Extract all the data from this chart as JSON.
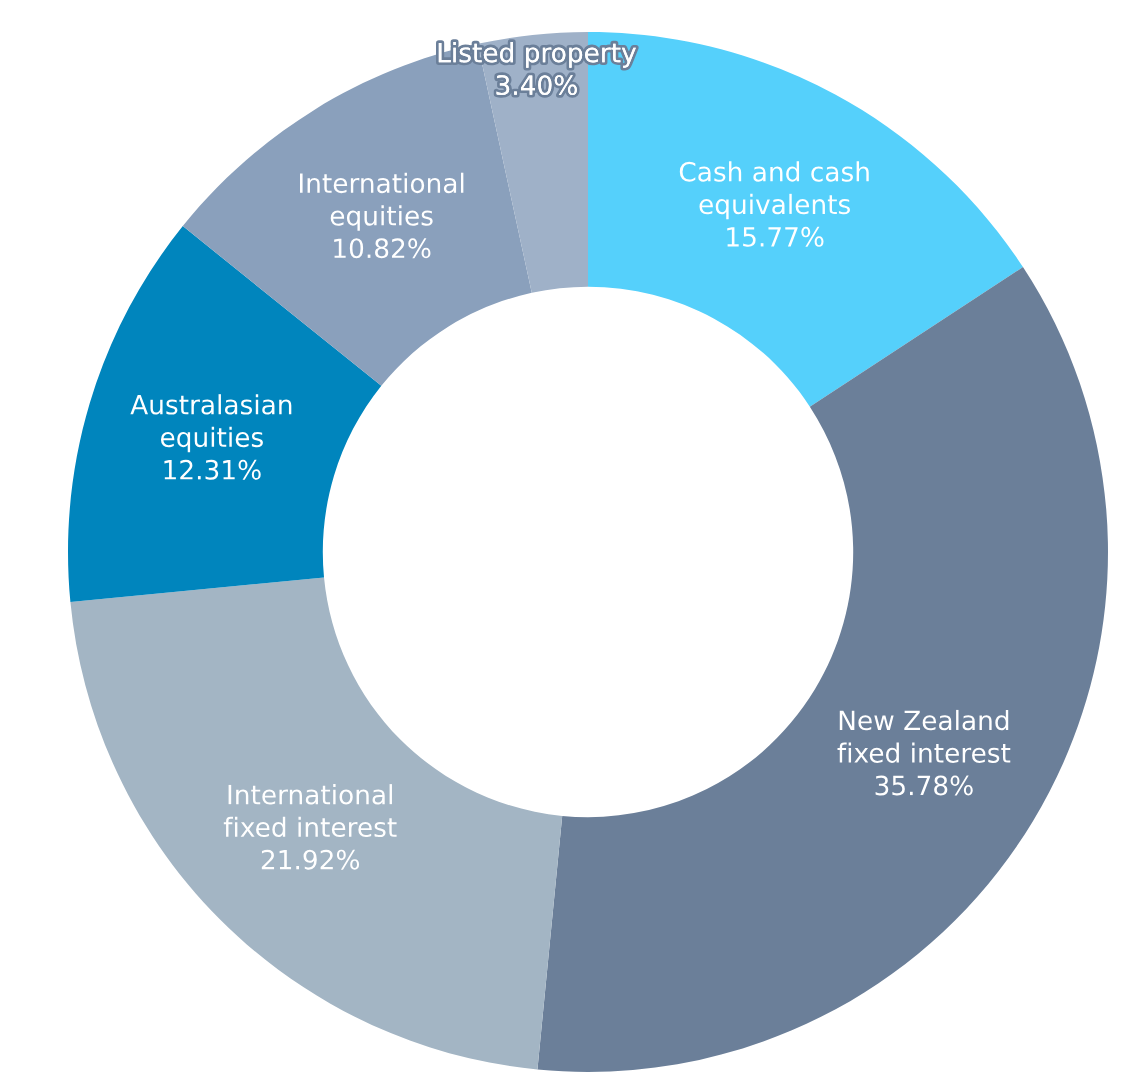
{
  "chart_data": {
    "type": "donut",
    "categories": [
      "Cash and cash\nequivalents",
      "New Zealand\nfixed interest",
      "International\nfixed interest",
      "Australasian\nequities",
      "International\nequities",
      "Listed property"
    ],
    "values": [
      15.77,
      35.78,
      21.92,
      12.31,
      10.82,
      3.4
    ],
    "value_labels": [
      "15.77%",
      "35.78%",
      "21.92%",
      "12.31%",
      "10.82%",
      "3.40%"
    ],
    "colors": [
      "#55d0fb",
      "#6b7f99",
      "#a3b5c4",
      "#0085bd",
      "#8aa0bc",
      "#9fb1c8"
    ],
    "legend": false
  }
}
